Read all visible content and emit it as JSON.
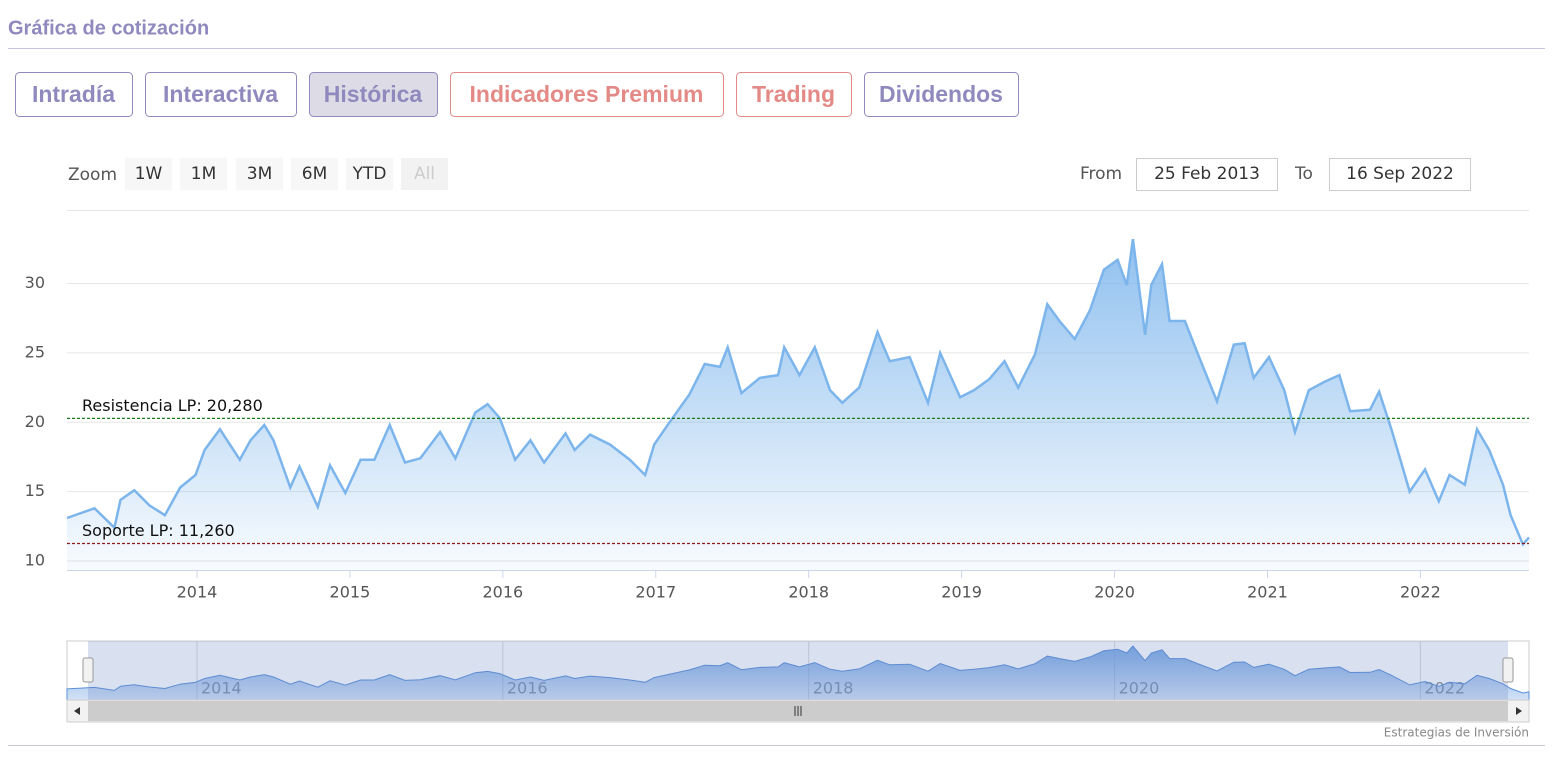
{
  "header": {
    "title": "Gráfica de cotización"
  },
  "tabs": [
    "Intradía",
    "Interactiva",
    "Histórica",
    "Indicadores Premium",
    "Trading",
    "Dividendos"
  ],
  "active_tab": 2,
  "zoom": {
    "label": "Zoom",
    "buttons": [
      "1W",
      "1M",
      "3M",
      "6M",
      "YTD",
      "All"
    ],
    "selected": 5
  },
  "range": {
    "from_label": "From",
    "from": "25 Feb 2013",
    "to_label": "To",
    "to": "16 Sep 2022"
  },
  "chart_data": {
    "type": "area",
    "color": "#7cb5ec",
    "x": [
      2013.15,
      2013.33,
      2013.46,
      2013.5,
      2013.59,
      2013.69,
      2013.79,
      2013.89,
      2013.99,
      2014.05,
      2014.15,
      2014.28,
      2014.35,
      2014.44,
      2014.5,
      2014.61,
      2014.67,
      2014.79,
      2014.87,
      2014.97,
      2015.07,
      2015.16,
      2015.26,
      2015.36,
      2015.46,
      2015.59,
      2015.69,
      2015.82,
      2015.9,
      2015.98,
      2016.08,
      2016.18,
      2016.27,
      2016.41,
      2016.47,
      2016.57,
      2016.7,
      2016.83,
      2016.93,
      2016.99,
      2017.09,
      2017.22,
      2017.32,
      2017.42,
      2017.47,
      2017.56,
      2017.68,
      2017.8,
      2017.84,
      2017.94,
      2018.04,
      2018.14,
      2018.22,
      2018.33,
      2018.45,
      2018.53,
      2018.66,
      2018.78,
      2018.86,
      2018.99,
      2019.08,
      2019.18,
      2019.28,
      2019.37,
      2019.48,
      2019.56,
      2019.64,
      2019.74,
      2019.84,
      2019.93,
      2020.02,
      2020.08,
      2020.12,
      2020.2,
      2020.24,
      2020.31,
      2020.36,
      2020.46,
      2020.56,
      2020.67,
      2020.78,
      2020.85,
      2020.91,
      2021.01,
      2021.11,
      2021.18,
      2021.27,
      2021.37,
      2021.47,
      2021.54,
      2021.67,
      2021.73,
      2021.81,
      2021.93,
      2022.03,
      2022.12,
      2022.19,
      2022.29,
      2022.37,
      2022.45,
      2022.54,
      2022.59,
      2022.67,
      2022.71
    ],
    "values": [
      13.1,
      13.8,
      12.4,
      14.4,
      15.1,
      14.0,
      13.3,
      15.3,
      16.2,
      18.0,
      19.5,
      17.3,
      18.7,
      19.8,
      18.7,
      15.3,
      16.8,
      13.9,
      16.9,
      14.9,
      17.3,
      17.3,
      19.8,
      17.1,
      17.4,
      19.3,
      17.4,
      20.7,
      21.3,
      20.3,
      17.3,
      18.7,
      17.1,
      19.2,
      18.0,
      19.1,
      18.4,
      17.3,
      16.2,
      18.4,
      20.0,
      22.0,
      24.2,
      24.0,
      25.4,
      22.1,
      23.2,
      23.4,
      25.4,
      23.4,
      25.4,
      22.3,
      21.4,
      22.5,
      26.5,
      24.4,
      24.7,
      21.4,
      25.0,
      21.8,
      22.3,
      23.1,
      24.4,
      22.5,
      24.9,
      28.5,
      27.3,
      26.0,
      28.1,
      31.0,
      31.7,
      29.9,
      33.2,
      26.3,
      29.9,
      31.4,
      27.3,
      27.3,
      24.5,
      21.5,
      25.6,
      25.7,
      23.2,
      24.7,
      22.3,
      19.3,
      22.3,
      22.9,
      23.4,
      20.8,
      20.9,
      22.2,
      19.5,
      15.0,
      16.6,
      14.3,
      16.2,
      15.5,
      19.5,
      18.0,
      15.5,
      13.3,
      11.2,
      11.7
    ],
    "xlim": [
      2013.15,
      2022.71
    ],
    "ylim": [
      9.35,
      35.3
    ],
    "xticks": [
      2014,
      2015,
      2016,
      2017,
      2018,
      2019,
      2020,
      2021,
      2022
    ],
    "yticks": [
      10,
      15,
      20,
      25,
      30
    ],
    "grid": true,
    "annotations": [
      {
        "label": "Resistencia LP: 20,280",
        "value": 20.28,
        "color": "#1a7a1a"
      },
      {
        "label": "Soporte LP: 11,260",
        "value": 11.26,
        "color": "#8b1a1a"
      }
    ]
  },
  "navigator": {
    "xticks": [
      2014,
      2016,
      2018,
      2020,
      2022
    ]
  },
  "credit": "Estrategias de Inversión"
}
